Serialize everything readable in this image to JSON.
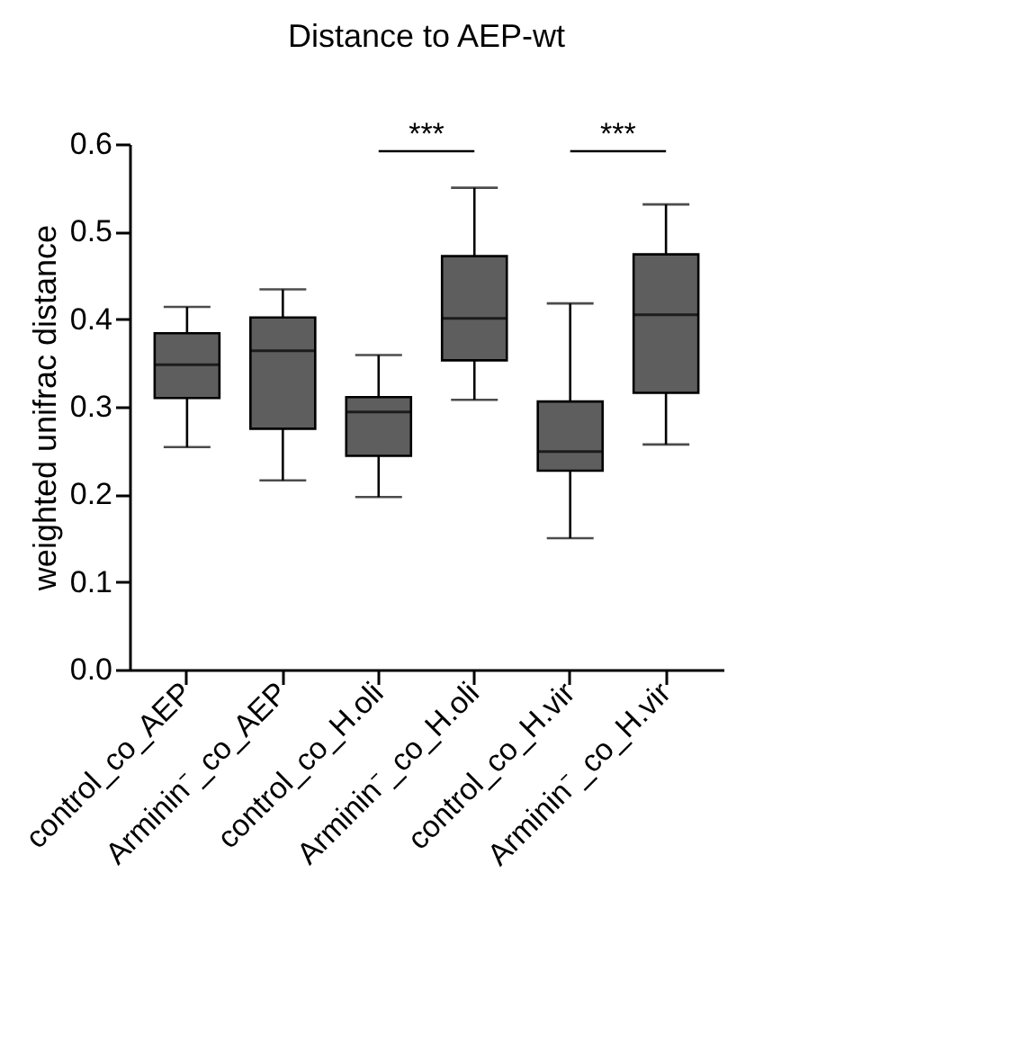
{
  "chart_data": {
    "type": "box",
    "title": "Distance to AEP-wt",
    "ylabel": "weighted unifrac distance",
    "categories": [
      "control_co_AEP",
      "Arminin⁻_co_AEP",
      "control_co_H.oli",
      "Arminin⁻_co_H.oli",
      "control_co_H.vir",
      "Arminin⁻_co_H.vir"
    ],
    "boxes": [
      {
        "low": 0.254,
        "q1": 0.31,
        "median": 0.348,
        "q3": 0.384,
        "high": 0.414
      },
      {
        "low": 0.216,
        "q1": 0.275,
        "median": 0.364,
        "q3": 0.402,
        "high": 0.434
      },
      {
        "low": 0.197,
        "q1": 0.244,
        "median": 0.294,
        "q3": 0.311,
        "high": 0.359
      },
      {
        "low": 0.308,
        "q1": 0.353,
        "median": 0.401,
        "q3": 0.472,
        "high": 0.55
      },
      {
        "low": 0.15,
        "q1": 0.227,
        "median": 0.249,
        "q3": 0.306,
        "high": 0.418
      },
      {
        "low": 0.257,
        "q1": 0.316,
        "median": 0.405,
        "q3": 0.474,
        "high": 0.531
      }
    ],
    "color": "#5e5e5e",
    "ylim": [
      0,
      0.6
    ],
    "yticks": [
      {
        "value": 0,
        "label": "0.0"
      },
      0.1,
      0.2,
      0.3,
      0.4,
      0.5,
      0.6
    ],
    "annotations": [
      "***",
      "***"
    ],
    "grid": false
  }
}
